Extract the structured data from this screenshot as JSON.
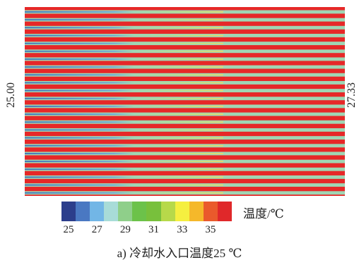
{
  "inlet_temp": "25.00",
  "outlet_temp": "27.33",
  "colorbar": {
    "title": "温度/℃",
    "ticks": [
      "25",
      "27",
      "29",
      "31",
      "33",
      "35"
    ],
    "range": [
      25,
      35
    ],
    "colors": [
      "#2c3e8c",
      "#4a78c2",
      "#72b6e6",
      "#a8dcd8",
      "#8fcf8a",
      "#6cc24a",
      "#78c03c",
      "#b7d94a",
      "#f5ef40",
      "#f5b82a",
      "#ea5a2c",
      "#e0282a"
    ]
  },
  "contour": {
    "channel_count": 24,
    "hot_color": "#e62828",
    "mid_color": "#9fd6b4",
    "cool_color": "#3d6fb8"
  },
  "caption": "a) 冷却水入口温度25 ℃"
}
